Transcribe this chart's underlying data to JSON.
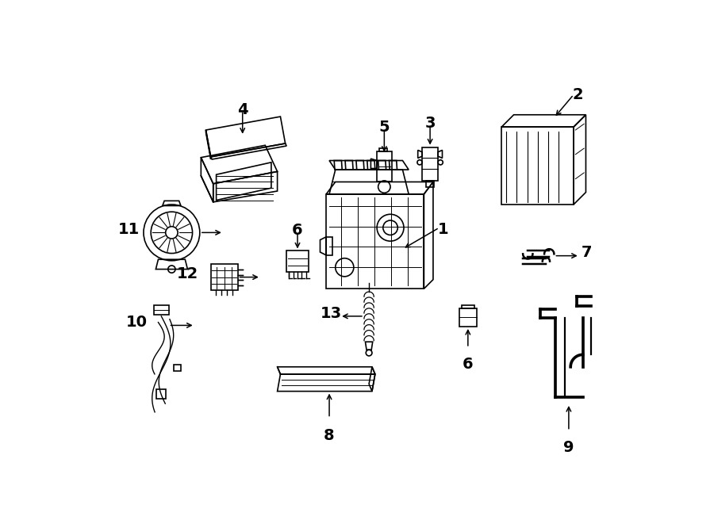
{
  "bg_color": "#ffffff",
  "line_color": "#000000",
  "lw": 1.2,
  "fig_width": 9.0,
  "fig_height": 6.61
}
